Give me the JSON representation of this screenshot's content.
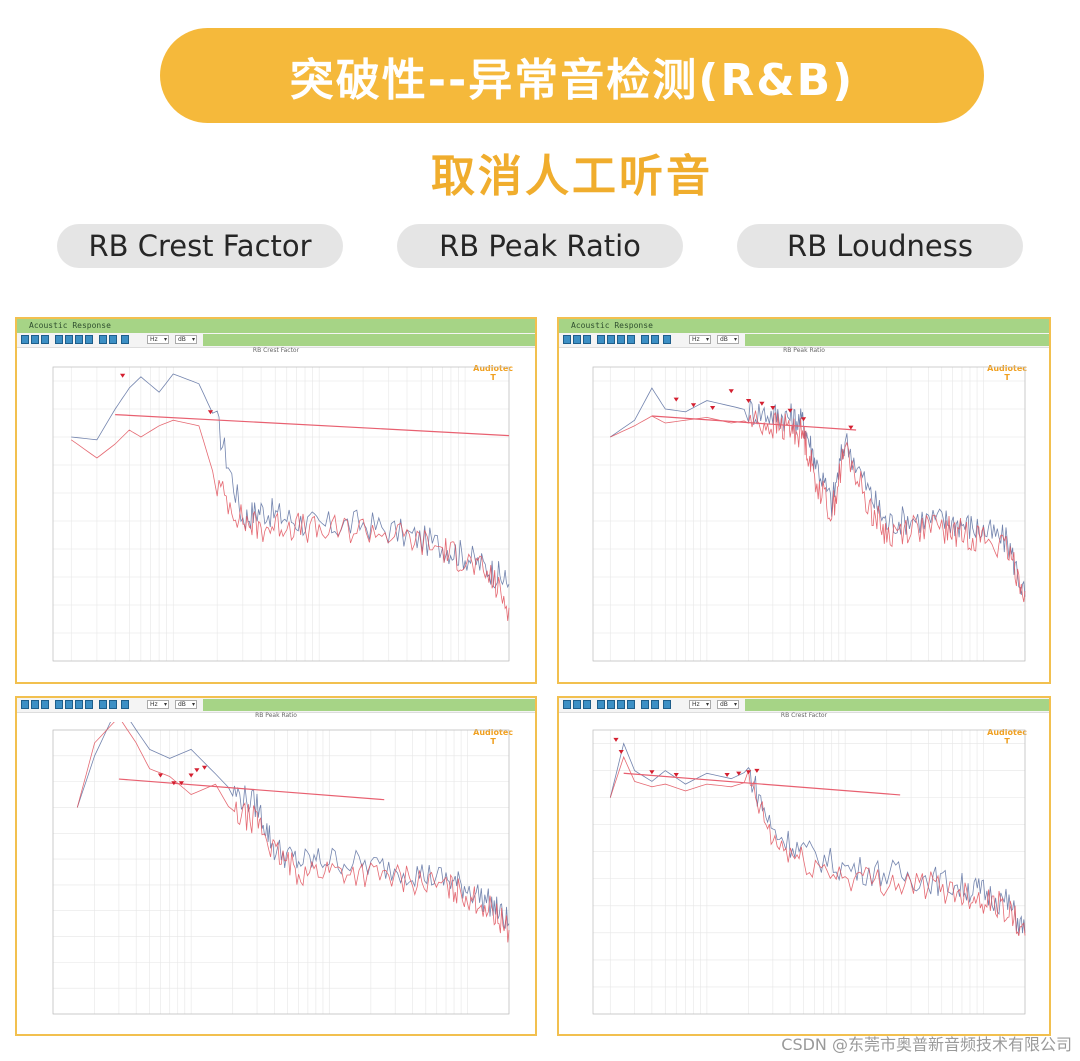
{
  "banner": {
    "title": "突破性--异常音检测(R&B)"
  },
  "subtitle": "取消人工听音",
  "pills": [
    "RB Crest Factor",
    "RB Peak Ratio",
    "RB Loudness"
  ],
  "panels": [
    {
      "window_title": "Acoustic Response",
      "chart_title": "RB Crest Factor",
      "logo": "Audiotec",
      "logo_mark": "T"
    },
    {
      "window_title": "Acoustic Response",
      "chart_title": "RB Peak Ratio",
      "logo": "Audiotec",
      "logo_mark": "T"
    },
    {
      "chart_title": "RB Peak Ratio",
      "logo": "Audiotec",
      "logo_mark": "T"
    },
    {
      "chart_title": "RB Crest Factor",
      "logo": "Audiotec",
      "logo_mark": "T"
    }
  ],
  "toolbar": {
    "unit_select": "Hz",
    "db_select": "dB"
  },
  "credit": "CSDN @东莞市奥普新音频技术有限公司",
  "colors": {
    "banner": "#f5b93b",
    "subtitle": "#f0ad2d",
    "panel_border": "#f2c04f",
    "titlebar": "#a6d486",
    "curve_blue": "#5a6fa0",
    "curve_red": "#e0505a",
    "threshold": "#e86070",
    "marker": "#d42030"
  },
  "chart_data": [
    {
      "type": "line",
      "title": "RB Crest Factor",
      "x": [
        20,
        30,
        40,
        50,
        60,
        80,
        100,
        150,
        200,
        300,
        400,
        600,
        1000,
        2000,
        4000,
        7000,
        10000,
        15000,
        20000
      ],
      "series": [
        {
          "values": [
            16,
            15.8,
            18,
            19.5,
            20.3,
            19.2,
            20.5,
            19.8,
            17,
            10.2,
            10.8,
            10.2,
            9.6,
            9.8,
            9.0,
            8.2,
            7.5,
            6.5,
            5.5
          ]
        },
        {
          "values": [
            15.8,
            14.5,
            15.5,
            16.5,
            16.0,
            16.8,
            17.2,
            16.8,
            12.5,
            10.0,
            9.5,
            9.8,
            9.2,
            9.5,
            8.8,
            8.0,
            7.2,
            6.0,
            3.8
          ]
        }
      ],
      "threshold": {
        "x": [
          40,
          100000
        ],
        "values": [
          17.6,
          16.1
        ]
      },
      "markers": [
        {
          "x": 45,
          "y": 20.3
        },
        {
          "x": 180,
          "y": 17.7
        }
      ],
      "xlim": [
        15,
        20000
      ],
      "ylim": [
        0,
        21
      ],
      "log_x": true
    },
    {
      "type": "line",
      "title": "RB Peak Ratio",
      "x": [
        20,
        30,
        40,
        50,
        70,
        100,
        150,
        200,
        300,
        400,
        500,
        600,
        800,
        1000,
        1500,
        2000,
        3000,
        5000,
        7000,
        10000,
        15000,
        20000
      ],
      "series": [
        {
          "values": [
            16,
            17.2,
            19.5,
            18.0,
            17.8,
            18.6,
            18.2,
            17.9,
            17.6,
            17.4,
            17.0,
            14.5,
            11.2,
            15.8,
            12.0,
            9.8,
            10.2,
            10.0,
            9.8,
            9.3,
            8.5,
            4.6
          ]
        },
        {
          "values": [
            16,
            16.8,
            17.5,
            17.0,
            17.2,
            17.4,
            17.0,
            17.2,
            16.8,
            16.6,
            16.2,
            13.2,
            10.5,
            15.2,
            11.0,
            9.0,
            9.6,
            9.4,
            9.1,
            8.8,
            7.8,
            5.0
          ]
        }
      ],
      "threshold": {
        "x": [
          40,
          1200
        ],
        "values": [
          17.5,
          16.5
        ]
      },
      "markers": [
        {
          "x": 60,
          "y": 18.6
        },
        {
          "x": 80,
          "y": 18.2
        },
        {
          "x": 110,
          "y": 18.0
        },
        {
          "x": 150,
          "y": 19.2
        },
        {
          "x": 200,
          "y": 18.5
        },
        {
          "x": 250,
          "y": 18.3
        },
        {
          "x": 300,
          "y": 18.0
        },
        {
          "x": 400,
          "y": 17.8
        },
        {
          "x": 500,
          "y": 17.2
        },
        {
          "x": 1100,
          "y": 16.6
        }
      ],
      "xlim": [
        15,
        20000
      ],
      "ylim": [
        0,
        21
      ],
      "log_x": true
    },
    {
      "type": "line",
      "title": "RB Peak Ratio",
      "x": [
        15,
        20,
        30,
        40,
        50,
        70,
        100,
        150,
        200,
        300,
        400,
        600,
        1000,
        2000,
        4000,
        7000,
        10000,
        15000,
        20000
      ],
      "series": [
        {
          "values": [
            16,
            20,
            24,
            22,
            20.5,
            19.8,
            20.5,
            18.6,
            17.2,
            16.2,
            12.8,
            11.8,
            12.0,
            11.5,
            11.0,
            10.4,
            9.8,
            8.5,
            7.0
          ]
        },
        {
          "values": [
            16,
            21,
            23,
            21,
            19.0,
            18.4,
            17.0,
            17.8,
            15.5,
            15.0,
            12.5,
            11.0,
            11.2,
            10.8,
            10.4,
            9.8,
            9.2,
            8.0,
            6.5
          ]
        }
      ],
      "threshold": {
        "x": [
          30,
          2500
        ],
        "values": [
          18.2,
          16.6
        ]
      },
      "markers": [
        {
          "x": 60,
          "y": 18.4
        },
        {
          "x": 75,
          "y": 17.8
        },
        {
          "x": 85,
          "y": 17.8
        },
        {
          "x": 100,
          "y": 18.4
        },
        {
          "x": 110,
          "y": 18.8
        },
        {
          "x": 125,
          "y": 19.0
        }
      ],
      "xlim": [
        10,
        20000
      ],
      "ylim": [
        0,
        22
      ],
      "log_x": true
    },
    {
      "type": "line",
      "title": "RB Crest Factor",
      "x": [
        20,
        25,
        30,
        40,
        50,
        70,
        100,
        150,
        200,
        300,
        500,
        1000,
        2000,
        4000,
        7000,
        10000,
        15000,
        20000
      ],
      "series": [
        {
          "values": [
            16,
            20,
            18,
            17.2,
            18,
            17,
            17.8,
            17.4,
            18,
            13.5,
            12.0,
            10.8,
            10.4,
            10.0,
            9.4,
            9.0,
            8.2,
            6.0
          ]
        },
        {
          "values": [
            16,
            19,
            17.2,
            16.8,
            17,
            16.5,
            17.0,
            16.8,
            17.2,
            12.8,
            11.2,
            10.2,
            9.8,
            9.5,
            9.0,
            8.5,
            7.8,
            5.8
          ]
        }
      ],
      "threshold": {
        "x": [
          25,
          2500
        ],
        "values": [
          17.8,
          16.2
        ]
      },
      "markers": [
        {
          "x": 22,
          "y": 20.2
        },
        {
          "x": 24,
          "y": 19.3
        },
        {
          "x": 40,
          "y": 17.8
        },
        {
          "x": 60,
          "y": 17.6
        },
        {
          "x": 140,
          "y": 17.6
        },
        {
          "x": 170,
          "y": 17.7
        },
        {
          "x": 200,
          "y": 17.8
        },
        {
          "x": 230,
          "y": 17.9
        }
      ],
      "xlim": [
        15,
        20000
      ],
      "ylim": [
        0,
        21
      ],
      "log_x": true
    }
  ]
}
